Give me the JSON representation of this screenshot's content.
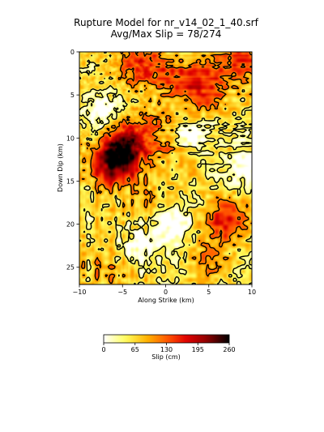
{
  "chart_data": {
    "type": "heatmap",
    "title": "Rupture Model for nr_v14_02_1_40.srf",
    "subtitle": "Avg/Max Slip = 78/274",
    "xlabel": "Along Strike (km)",
    "ylabel": "Down Dip (km)",
    "xlim": [
      -10,
      10
    ],
    "ylim": [
      27,
      0
    ],
    "x_ticks": [
      -10,
      -5,
      0,
      5,
      10
    ],
    "y_ticks": [
      0,
      5,
      10,
      15,
      20,
      25
    ],
    "grid": false,
    "colorbar": {
      "label": "Slip (cm)",
      "ticks": [
        0,
        65,
        130,
        195,
        260
      ],
      "range": [
        0,
        260
      ],
      "colormap": "hot_r",
      "colors": [
        "#ffffff",
        "#ffff60",
        "#ffb000",
        "#ff5000",
        "#e00000",
        "#900000",
        "#000000"
      ]
    },
    "contour_color": "#000000",
    "slip_average_cm": 78,
    "slip_max_cm": 274,
    "hotspots": [
      {
        "x": -6,
        "y": 13,
        "slip": 220
      },
      {
        "x": -4.5,
        "y": 11,
        "slip": 200
      },
      {
        "x": 7,
        "y": 19.5,
        "slip": 185
      },
      {
        "x": 4.5,
        "y": 4,
        "slip": 160
      },
      {
        "x": -3,
        "y": 1.5,
        "slip": 150
      },
      {
        "x": 8.5,
        "y": 1,
        "slip": 150
      },
      {
        "x": 1,
        "y": 3,
        "slip": 120
      },
      {
        "x": -1,
        "y": 9,
        "slip": 110
      },
      {
        "x": 5,
        "y": 24.5,
        "slip": 120
      },
      {
        "x": -7,
        "y": 25.5,
        "slip": 100
      },
      {
        "x": -2,
        "y": 17,
        "slip": 90
      },
      {
        "x": 2,
        "y": 13,
        "slip": 90
      }
    ],
    "lowslip_zones": [
      {
        "x": -7.5,
        "y": 7,
        "slip": 0
      },
      {
        "x": 3,
        "y": 10,
        "slip": 0
      },
      {
        "x": 1,
        "y": 20,
        "slip": 0
      },
      {
        "x": -3,
        "y": 22.5,
        "slip": 0
      },
      {
        "x": 9.5,
        "y": 13,
        "slip": 0
      }
    ]
  }
}
